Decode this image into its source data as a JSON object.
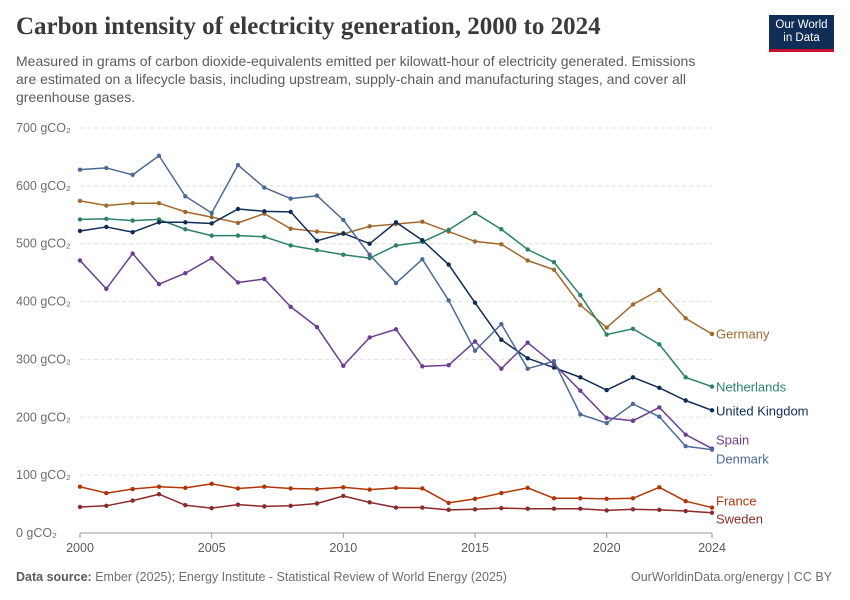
{
  "header": {
    "title": "Carbon intensity of electricity generation, 2000 to 2024",
    "subtitle": "Measured in grams of carbon dioxide-equivalents emitted per kilowatt-hour of electricity generated. Emissions are estimated on a lifecycle basis, including upstream, supply-chain and manufacturing stages, and cover all greenhouse gases.",
    "logo_line1": "Our World",
    "logo_line2": "in Data"
  },
  "footer": {
    "source_label": "Data source:",
    "source_text": "Ember (2025); Energy Institute - Statistical Review of World Energy (2025)",
    "url": "OurWorldinData.org/energy | CC BY"
  },
  "chart_data": {
    "type": "line",
    "x": [
      2000,
      2001,
      2002,
      2003,
      2004,
      2005,
      2006,
      2007,
      2008,
      2009,
      2010,
      2011,
      2012,
      2013,
      2014,
      2015,
      2016,
      2017,
      2018,
      2019,
      2020,
      2021,
      2022,
      2023,
      2024
    ],
    "xlim": [
      2000,
      2024
    ],
    "ylim": [
      0,
      700
    ],
    "x_ticks": [
      "2000",
      "2005",
      "2010",
      "2015",
      "2020",
      "2024"
    ],
    "y_ticks": [
      "0 gCO₂",
      "100 gCO₂",
      "200 gCO₂",
      "300 gCO₂",
      "400 gCO₂",
      "500 gCO₂",
      "600 gCO₂",
      "700 gCO₂"
    ],
    "grid": "horizontal dashed",
    "legend": "inline labels at right end of each line",
    "series": [
      {
        "name": "Germany",
        "color": "#a2692f",
        "values": [
          574,
          566,
          570,
          570,
          555,
          546,
          536,
          552,
          526,
          521,
          517,
          530,
          534,
          538,
          521,
          504,
          499,
          471,
          455,
          394,
          355,
          395,
          420,
          371,
          344
        ]
      },
      {
        "name": "Netherlands",
        "color": "#2c8465",
        "values": [
          542,
          543,
          540,
          542,
          525,
          514,
          514,
          512,
          497,
          489,
          481,
          475,
          497,
          503,
          524,
          553,
          525,
          490,
          468,
          411,
          343,
          353,
          326,
          269,
          253
        ]
      },
      {
        "name": "United Kingdom",
        "color": "#0f2d55",
        "values": [
          522,
          529,
          520,
          537,
          537,
          535,
          560,
          556,
          555,
          505,
          518,
          500,
          537,
          506,
          464,
          398,
          334,
          302,
          286,
          269,
          247,
          269,
          251,
          229,
          212
        ]
      },
      {
        "name": "Spain",
        "color": "#6c3d91",
        "values": [
          471,
          422,
          483,
          430,
          449,
          475,
          433,
          439,
          391,
          356,
          289,
          338,
          352,
          288,
          290,
          331,
          284,
          329,
          292,
          246,
          199,
          194,
          217,
          170,
          146
        ]
      },
      {
        "name": "Denmark",
        "color": "#4b6a96",
        "values": [
          628,
          631,
          619,
          652,
          582,
          553,
          636,
          597,
          578,
          583,
          541,
          481,
          432,
          473,
          402,
          315,
          361,
          284,
          297,
          205,
          190,
          223,
          201,
          150,
          144
        ]
      },
      {
        "name": "France",
        "color": "#b13507",
        "values": [
          80,
          69,
          76,
          80,
          78,
          85,
          77,
          80,
          77,
          76,
          79,
          75,
          78,
          77,
          52,
          59,
          69,
          78,
          60,
          60,
          59,
          60,
          79,
          55,
          44
        ]
      },
      {
        "name": "Sweden",
        "color": "#8b2b2b",
        "values": [
          45,
          47,
          56,
          67,
          48,
          43,
          49,
          46,
          47,
          51,
          64,
          53,
          44,
          44,
          40,
          41,
          43,
          42,
          42,
          42,
          39,
          41,
          40,
          38,
          35
        ]
      }
    ]
  }
}
